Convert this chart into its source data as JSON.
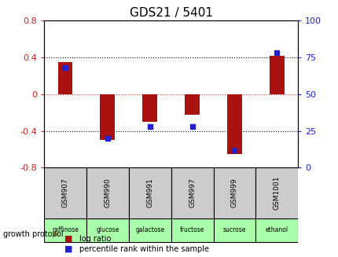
{
  "title": "GDS21 / 5401",
  "samples": [
    "GSM907",
    "GSM990",
    "GSM991",
    "GSM997",
    "GSM999",
    "GSM1001"
  ],
  "protocols": [
    "raffinose",
    "glucose",
    "galactose",
    "fructose",
    "sucrose",
    "ethanol"
  ],
  "log_ratios": [
    0.35,
    -0.5,
    -0.3,
    -0.22,
    -0.65,
    0.42
  ],
  "percentile_ranks": [
    68,
    20,
    28,
    28,
    12,
    78
  ],
  "bar_color": "#aa1111",
  "dot_color": "#2222cc",
  "left_ylim": [
    -0.8,
    0.8
  ],
  "left_yticks": [
    -0.8,
    -0.4,
    0,
    0.4,
    0.8
  ],
  "right_ylim": [
    0,
    100
  ],
  "right_yticks": [
    0,
    25,
    50,
    75,
    100
  ],
  "protocol_bg": "#aaffaa",
  "sample_bg": "#cccccc",
  "growth_label": "growth protocol",
  "legend_log": "log ratio",
  "legend_pct": "percentile rank within the sample"
}
